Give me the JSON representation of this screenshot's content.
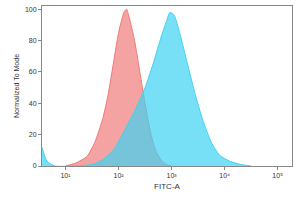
{
  "chart_data": {
    "type": "area",
    "x_label": "FITC-A",
    "y_label": "Normalized To Mode",
    "log": "x",
    "grid": false,
    "xlim": [
      3.6,
      186000
    ],
    "ylim": [
      0,
      102
    ],
    "xticks": [
      {
        "value": 10,
        "label": "10¹"
      },
      {
        "value": 100,
        "label": "10²"
      },
      {
        "value": 1000,
        "label": "10³"
      },
      {
        "value": 10000,
        "label": "10⁴"
      },
      {
        "value": 100000,
        "label": "10⁵"
      }
    ],
    "yticks": [
      0,
      20,
      40,
      60,
      80,
      100
    ],
    "series": [
      {
        "color": "#f07a7a",
        "x": [
          10,
          15.8,
          25.1,
          35.5,
          50.1,
          63.1,
          79.4,
          100,
          112,
          126,
          141,
          158,
          200,
          251,
          316,
          398,
          501,
          631,
          794,
          1000
        ],
        "values": [
          0,
          2,
          6,
          15,
          30,
          45,
          65,
          85,
          92,
          98,
          100,
          95,
          80,
          60,
          40,
          22,
          10,
          4,
          1,
          0
        ]
      },
      {
        "color": "#3fd3f2",
        "x": [
          3.6,
          4.47,
          6.31,
          31.6,
          50.1,
          79.4,
          126,
          200,
          316,
          447,
          631,
          794,
          933,
          1122,
          1413,
          1995,
          2818,
          3981,
          5623,
          7943,
          12589,
          19953,
          31623
        ],
        "values": [
          12,
          3,
          0,
          1,
          4,
          10,
          22,
          35,
          50,
          65,
          82,
          92,
          98,
          96,
          85,
          65,
          45,
          28,
          15,
          7,
          3,
          1,
          0
        ]
      }
    ]
  }
}
